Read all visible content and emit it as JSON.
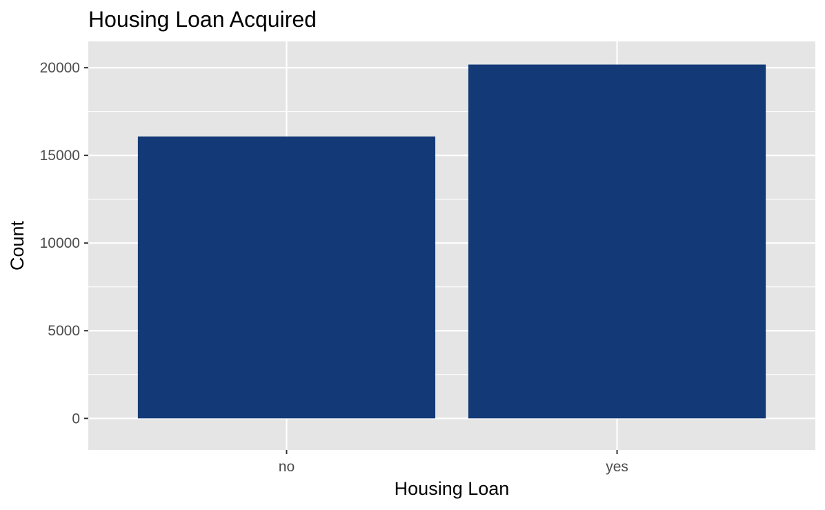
{
  "chart_data": {
    "type": "bar",
    "title": "Housing Loan Acquired",
    "xlabel": "Housing Loan",
    "ylabel": "Count",
    "categories": [
      "no",
      "yes"
    ],
    "values": [
      16080,
      20180
    ],
    "ylim": [
      -1800,
      21500
    ],
    "yticks": [
      0,
      5000,
      10000,
      15000,
      20000
    ],
    "ytick_labels": [
      "0",
      "5000",
      "10000",
      "15000",
      "20000"
    ],
    "grid": true,
    "legend": "none",
    "colors": {
      "bar": "#133a77",
      "panel_background": "#e5e5e5",
      "grid": "#ffffff",
      "tick_text": "#4d4d4d",
      "tick_mark": "#333333"
    }
  }
}
